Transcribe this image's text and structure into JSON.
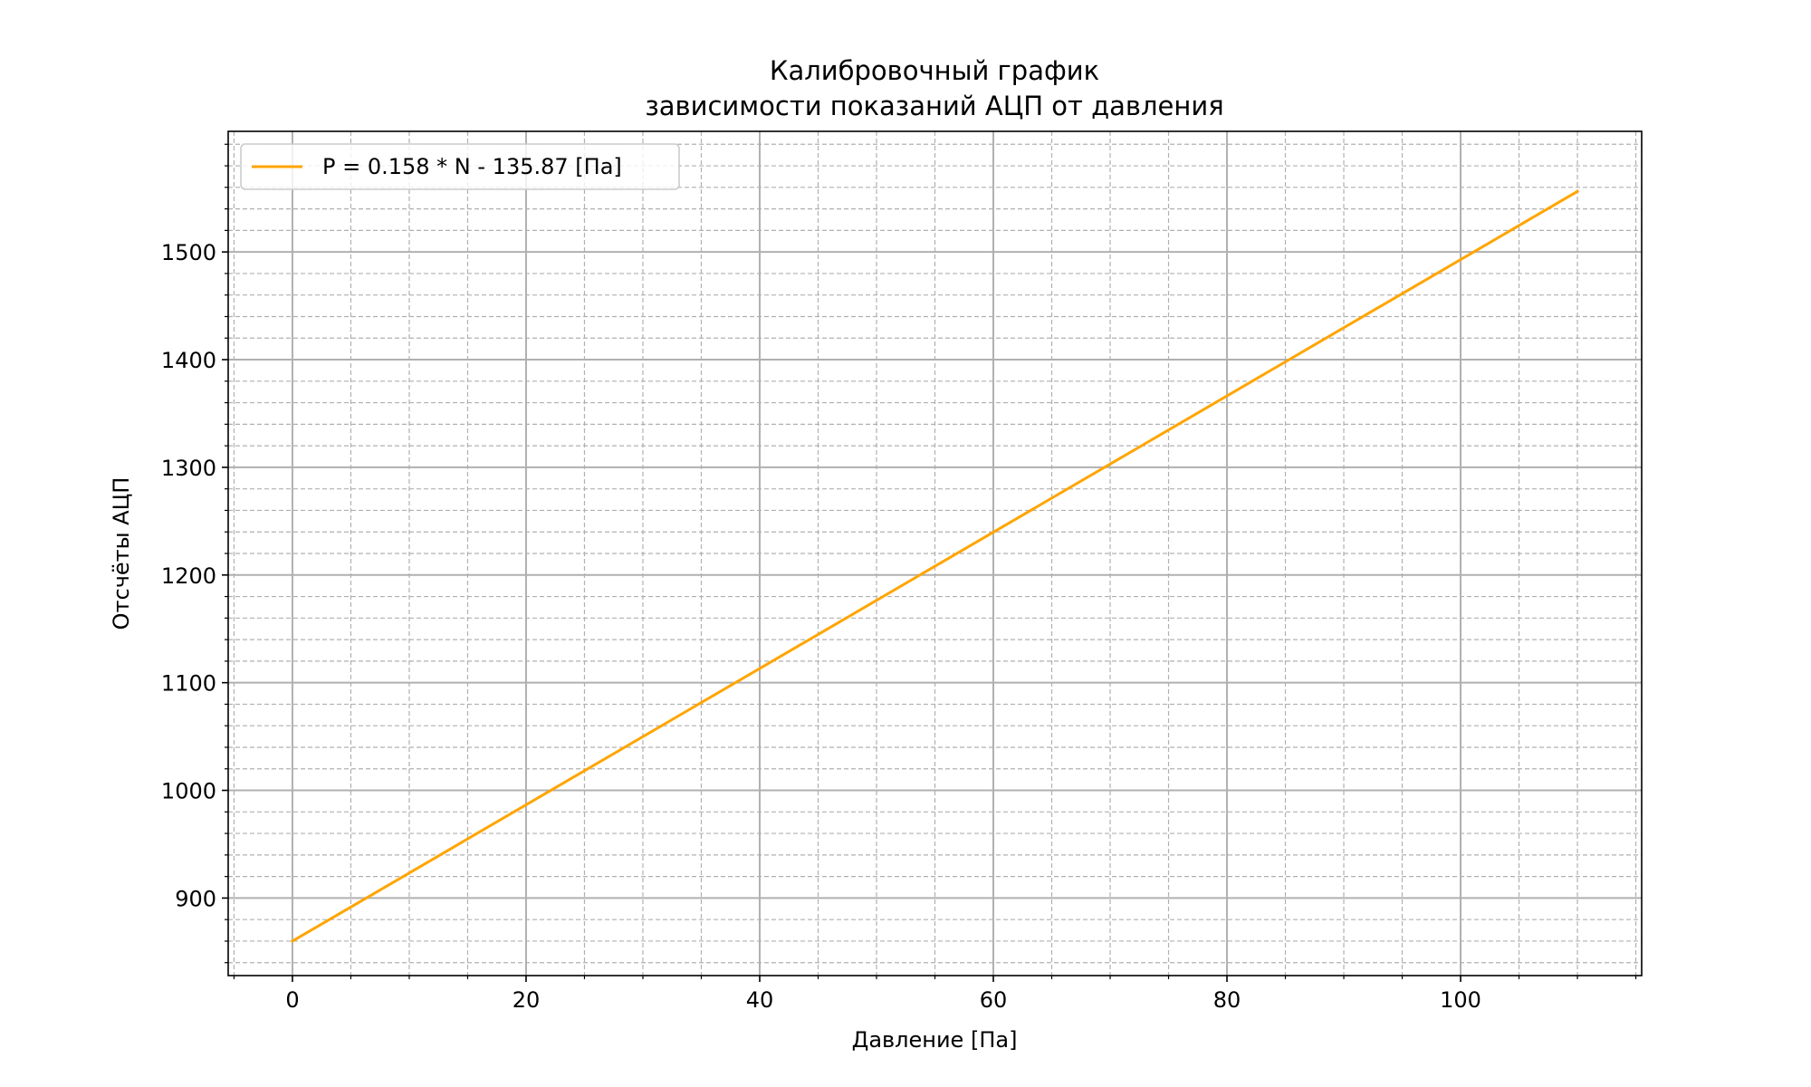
{
  "chart_data": {
    "type": "line",
    "title": [
      "Калибровочный график",
      "зависимости показаний АЦП от давления"
    ],
    "xlabel": "Давление [Па]",
    "ylabel": "Отсчёты АЦП",
    "xlim": [
      -5.5,
      115.5
    ],
    "ylim": [
      828,
      1612
    ],
    "xticks": [
      0,
      20,
      40,
      60,
      80,
      100
    ],
    "xtick_labels": [
      "0",
      "20",
      "40",
      "60",
      "80",
      "100"
    ],
    "yticks": [
      900,
      1000,
      1100,
      1200,
      1300,
      1400,
      1500
    ],
    "ytick_labels": [
      "900",
      "1000",
      "1100",
      "1200",
      "1300",
      "1400",
      "1500"
    ],
    "x_minor_step": 5,
    "y_minor_step": 20,
    "grid": {
      "major": true,
      "minor": true,
      "minor_style": "dashed"
    },
    "legend": {
      "placement": "top-left"
    },
    "series": [
      {
        "name": "P = 0.158 * N - 135.87 [Па]",
        "color": "#FFA500",
        "x": [
          0,
          110
        ],
        "y": [
          860,
          1556.2
        ]
      }
    ]
  }
}
